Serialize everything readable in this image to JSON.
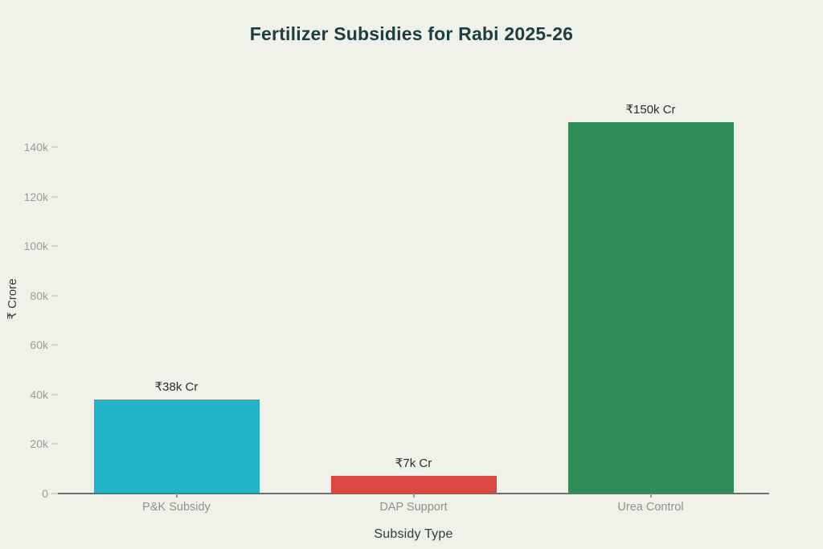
{
  "page": {
    "background": "#f0f2ea"
  },
  "chart_data": {
    "type": "bar",
    "title": "Fertilizer Subsidies for Rabi 2025-26",
    "xlabel": "Subsidy Type",
    "ylabel": "₹ Crore",
    "categories": [
      "P&K Subsidy",
      "DAP Support",
      "Urea Control"
    ],
    "values": [
      38000,
      7000,
      150000
    ],
    "value_labels": [
      "₹38k Cr",
      "₹7k Cr",
      "₹150k Cr"
    ],
    "bar_colors": [
      "#22b3c9",
      "#dd4742",
      "#2f8e58"
    ],
    "yticks": [
      0,
      20000,
      40000,
      60000,
      80000,
      100000,
      120000,
      140000
    ],
    "ytick_labels": [
      "0",
      "20k",
      "40k",
      "60k",
      "80k",
      "100k",
      "120k",
      "140k"
    ],
    "ylim": [
      0,
      167000
    ],
    "grid": false,
    "legend": "none"
  },
  "colors": {
    "title": "#1c3d42",
    "axis_line": "#6e6e6e",
    "tick_label": "#9b9b96",
    "category_label": "#8f918b",
    "value_label": "#2d2d2d",
    "axis_title": "#2e3d3d"
  }
}
